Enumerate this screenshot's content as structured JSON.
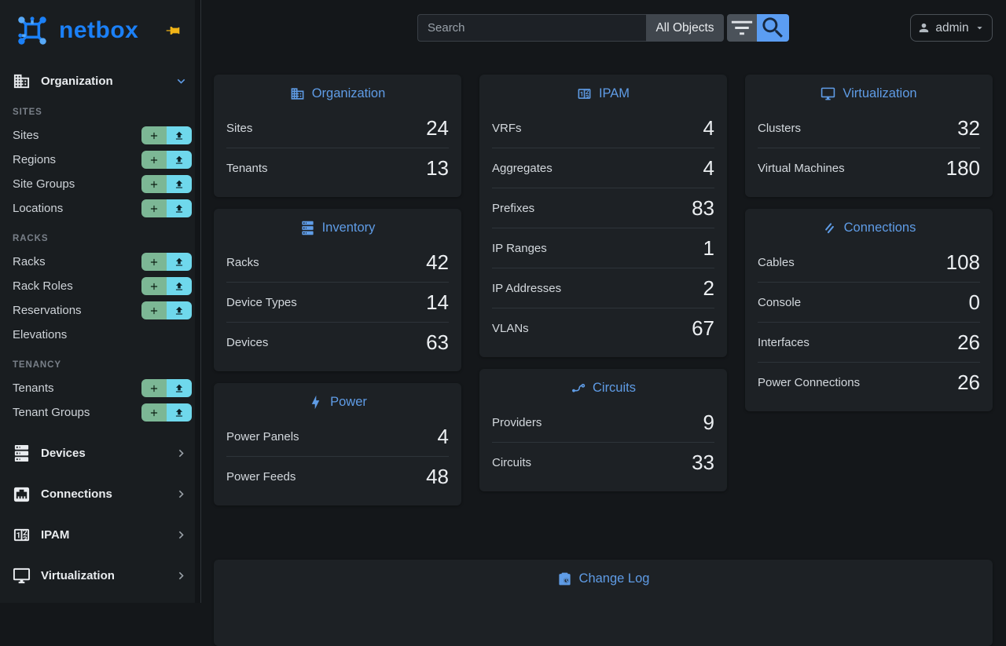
{
  "colors": {
    "accent_blue": "#5f9ce6",
    "logo_blue": "#1b80f7",
    "button_green": "#7cb795",
    "button_cyan": "#6fd8ec",
    "pin_gold": "#f0b417",
    "search_button_blue": "#5b9df2"
  },
  "sidebar": {
    "logo_text": "netbox",
    "organization_label": "Organization",
    "sections": [
      {
        "heading": "SITES",
        "items": [
          {
            "label": "Sites",
            "actions": true
          },
          {
            "label": "Regions",
            "actions": true
          },
          {
            "label": "Site Groups",
            "actions": true
          },
          {
            "label": "Locations",
            "actions": true
          }
        ]
      },
      {
        "heading": "RACKS",
        "items": [
          {
            "label": "Racks",
            "actions": true
          },
          {
            "label": "Rack Roles",
            "actions": true
          },
          {
            "label": "Reservations",
            "actions": true
          },
          {
            "label": "Elevations",
            "actions": false
          }
        ]
      },
      {
        "heading": "TENANCY",
        "items": [
          {
            "label": "Tenants",
            "actions": true
          },
          {
            "label": "Tenant Groups",
            "actions": true
          }
        ]
      }
    ],
    "menus": [
      {
        "label": "Devices",
        "icon": "server"
      },
      {
        "label": "Connections",
        "icon": "ethernet"
      },
      {
        "label": "IPAM",
        "icon": "counter"
      },
      {
        "label": "Virtualization",
        "icon": "monitor"
      }
    ]
  },
  "header": {
    "search_placeholder": "Search",
    "scope_label": "All Objects",
    "user_label": "admin"
  },
  "dashboard": {
    "columns": [
      [
        {
          "title": "Organization",
          "icon": "building",
          "rows": [
            {
              "label": "Sites",
              "value": 24
            },
            {
              "label": "Tenants",
              "value": 13
            }
          ]
        },
        {
          "title": "Inventory",
          "icon": "server",
          "rows": [
            {
              "label": "Racks",
              "value": 42
            },
            {
              "label": "Device Types",
              "value": 14
            },
            {
              "label": "Devices",
              "value": 63
            }
          ]
        },
        {
          "title": "Power",
          "icon": "bolt",
          "rows": [
            {
              "label": "Power Panels",
              "value": 4
            },
            {
              "label": "Power Feeds",
              "value": 48
            }
          ]
        }
      ],
      [
        {
          "title": "IPAM",
          "icon": "counter",
          "rows": [
            {
              "label": "VRFs",
              "value": 4
            },
            {
              "label": "Aggregates",
              "value": 4
            },
            {
              "label": "Prefixes",
              "value": 83
            },
            {
              "label": "IP Ranges",
              "value": 1
            },
            {
              "label": "IP Addresses",
              "value": 2
            },
            {
              "label": "VLANs",
              "value": 67
            }
          ]
        },
        {
          "title": "Circuits",
          "icon": "transit",
          "rows": [
            {
              "label": "Providers",
              "value": 9
            },
            {
              "label": "Circuits",
              "value": 33
            }
          ]
        }
      ],
      [
        {
          "title": "Virtualization",
          "icon": "monitor",
          "rows": [
            {
              "label": "Clusters",
              "value": 32
            },
            {
              "label": "Virtual Machines",
              "value": 180
            }
          ]
        },
        {
          "title": "Connections",
          "icon": "cable",
          "rows": [
            {
              "label": "Cables",
              "value": 108
            },
            {
              "label": "Console",
              "value": 0
            },
            {
              "label": "Interfaces",
              "value": 26
            },
            {
              "label": "Power Connections",
              "value": 26
            }
          ]
        }
      ]
    ],
    "changelog": {
      "title": "Change Log",
      "icon": "clipboard-clock"
    }
  }
}
